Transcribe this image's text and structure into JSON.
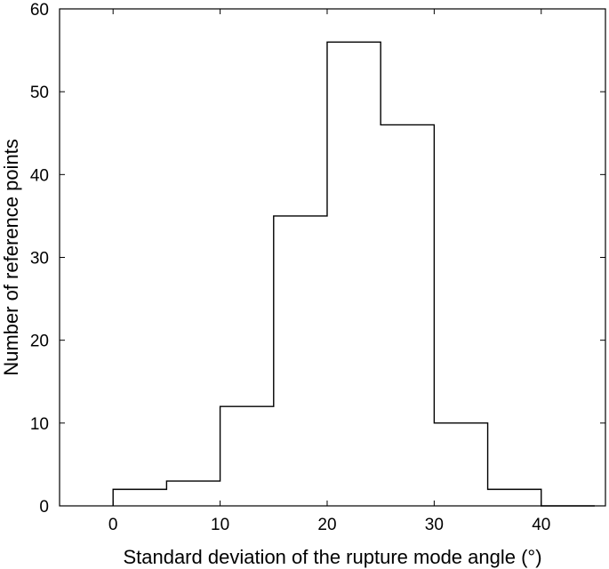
{
  "chart_data": {
    "type": "bar",
    "style": "step-histogram",
    "title": "",
    "xlabel": "Standard deviation of the rupture mode angle (°)",
    "ylabel": "Number of reference points",
    "xlim": [
      -5,
      46
    ],
    "ylim": [
      0,
      60
    ],
    "xticks": [
      0,
      10,
      20,
      30,
      40
    ],
    "yticks": [
      0,
      10,
      20,
      30,
      40,
      50,
      60
    ],
    "bin_width": 5,
    "bins": [
      {
        "start": 0,
        "end": 5,
        "count": 2
      },
      {
        "start": 5,
        "end": 10,
        "count": 3
      },
      {
        "start": 10,
        "end": 15,
        "count": 12
      },
      {
        "start": 15,
        "end": 20,
        "count": 35
      },
      {
        "start": 20,
        "end": 25,
        "count": 56
      },
      {
        "start": 25,
        "end": 30,
        "count": 46
      },
      {
        "start": 30,
        "end": 35,
        "count": 10
      },
      {
        "start": 35,
        "end": 40,
        "count": 2
      },
      {
        "start": 40,
        "end": 45,
        "count": 0
      }
    ],
    "grid": false,
    "legend": "none",
    "colors": {
      "line": "#000000",
      "background": "#ffffff"
    }
  }
}
